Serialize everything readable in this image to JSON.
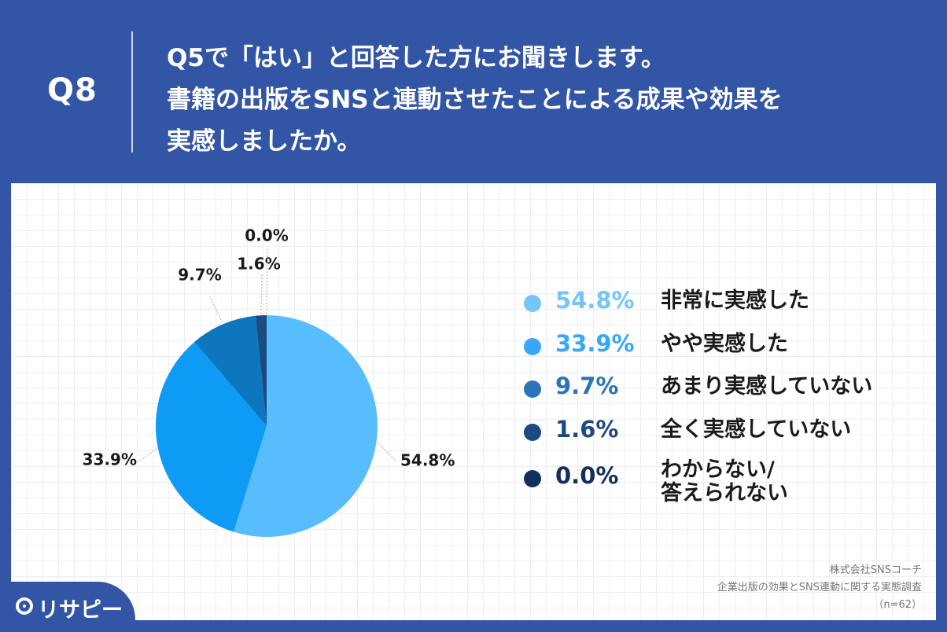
{
  "header": {
    "qnum": "Q8",
    "question_lines": [
      "Q5で「はい」と回答した方にお聞きします。",
      "書籍の出版をSNSと連動させたことによる成果や効果を",
      "実感しましたか。"
    ]
  },
  "chart_data": {
    "type": "pie",
    "slices": [
      {
        "label": "非常に実感した",
        "value": 54.8,
        "display": "54.8%",
        "color": "#58bdfc"
      },
      {
        "label": "やや実感した",
        "value": 33.9,
        "display": "33.9%",
        "color": "#0d9bf5"
      },
      {
        "label": "あまり実感していない",
        "value": 9.7,
        "display": "9.7%",
        "color": "#0c76be"
      },
      {
        "label": "全く実感していない",
        "value": 1.6,
        "display": "1.6%",
        "color": "#1b4c80"
      },
      {
        "label": "わからない/答えられない",
        "value": 0.0,
        "display": "0.0%",
        "color": "#142f5e"
      }
    ]
  },
  "legend": [
    {
      "pct": "54.8%",
      "label": [
        "非常に実感した"
      ],
      "color": "#74c6f9"
    },
    {
      "pct": "33.9%",
      "label": [
        "やや実感した"
      ],
      "color": "#38a7f7"
    },
    {
      "pct": "9.7%",
      "label": [
        "あまり実感していない"
      ],
      "color": "#2c74b7"
    },
    {
      "pct": "1.6%",
      "label": [
        "全く実感していない"
      ],
      "color": "#1d4a80"
    },
    {
      "pct": "0.0%",
      "label": [
        "わからない/",
        "答えられない"
      ],
      "color": "#122f5d"
    }
  ],
  "source": {
    "company": "株式会社SNSコーチ",
    "survey": "企業出版の効果とSNS連動に関する実態調査",
    "n": "（n=62）"
  },
  "logo": {
    "text": "リサピー"
  }
}
